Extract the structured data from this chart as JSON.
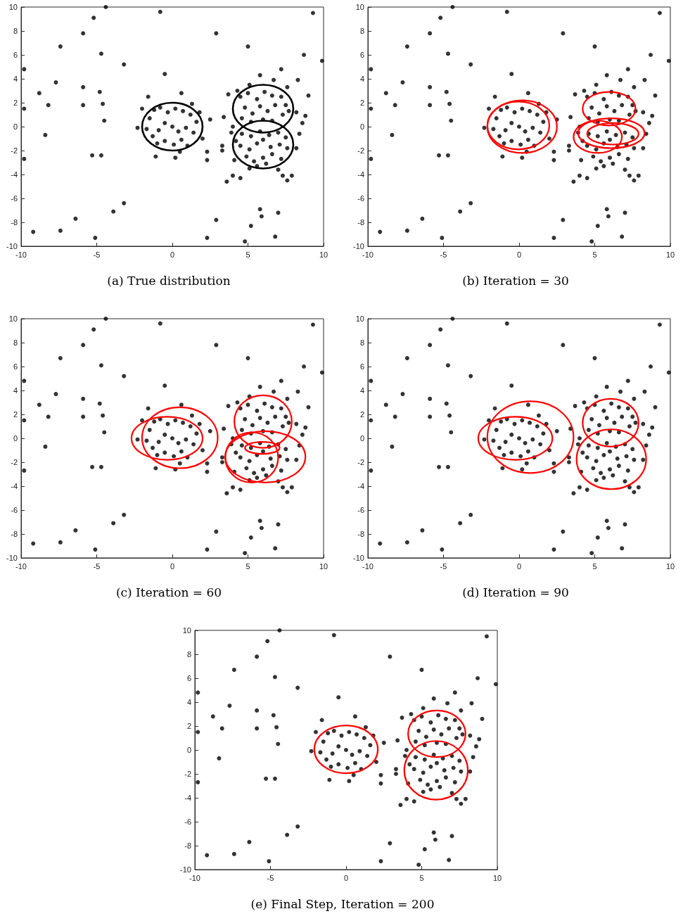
{
  "chart_data": [
    {
      "type": "scatter",
      "title": "(a) True distribution",
      "xlim": [
        -10,
        10
      ],
      "ylim": [
        -10,
        10
      ],
      "xticks": [
        -10,
        -5,
        0,
        5,
        10
      ],
      "yticks": [
        -10,
        -8,
        -6,
        -4,
        -2,
        0,
        2,
        4,
        6,
        8,
        10
      ],
      "grid": false,
      "x": [
        -9.8,
        -9.8,
        -9.8,
        -8.8,
        -8.2,
        -8.4,
        -7.7,
        -7.4,
        -9.2,
        -7.4,
        -6.4,
        -5.9,
        -5.9,
        -5.9,
        -5.2,
        -5.3,
        -4.8,
        -4.7,
        -4.6,
        -4.5,
        -4.7,
        -4.4,
        -3.2,
        -3.2,
        -3.9,
        -5.1,
        -0.8,
        -0.5,
        0.6,
        2.3,
        2.9,
        2.9,
        2.5,
        2.3,
        2.3,
        5.0,
        5.8,
        7.2,
        8.7,
        9.9,
        9.3,
        9.0,
        8.3,
        5.8,
        5.9,
        7.0,
        5.2,
        6.8,
        4.8,
        3.6,
        4.0,
        4.5,
        7.6,
        7.9,
        7.3,
        3.7,
        3.4,
        3.3,
        3.3,
        8.6,
        8.8,
        8.4,
        -1.5,
        -1.2,
        -0.8,
        -0.3,
        0.2,
        0.7,
        1.2,
        1.6,
        -1.7,
        -1.3,
        -0.9,
        -0.5,
        0,
        0.4,
        0.9,
        1.4,
        -1.0,
        -0.5,
        0.1,
        0.6,
        1.0,
        -2.3,
        -1.6,
        -1.1,
        0.2,
        1.3,
        -2.0,
        1.8,
        2.0,
        0.5,
        4.5,
        5.0,
        5.6,
        6.1,
        6.6,
        7.2,
        7.5,
        4.8,
        5.3,
        5.8,
        6.3,
        6.8,
        7.3,
        4.6,
        5.2,
        6.0,
        6.6,
        7.7,
        4.3,
        7.6,
        6.7,
        5.1,
        8.2,
        4.0,
        3.9,
        4.6,
        5.2,
        5.8,
        6.4,
        7.0,
        7.5,
        4.5,
        5.1,
        5.6,
        6.0,
        6.5,
        7.1,
        7.6,
        4.9,
        5.4,
        6.0,
        6.6,
        7.2,
        5.6,
        6.2,
        4.2,
        8.2,
        7.0,
        5.1,
        4.1
      ],
      "series": [
        {
          "marker": "circle",
          "color": "#000000",
          "values": [
            4.8,
            1.5,
            -2.7,
            2.8,
            1.8,
            -0.7,
            3.7,
            6.7,
            -8.8,
            -8.7,
            -7.7,
            7.8,
            3.3,
            1.8,
            9.1,
            -2.4,
            2.9,
            6.1,
            1.9,
            0.5,
            -2.4,
            10,
            5.2,
            -6.4,
            -7.1,
            -9.3,
            9.6,
            4.4,
            2.8,
            -9.3,
            7.8,
            -7.8,
            0.6,
            -2.1,
            -2.8,
            6.7,
            4.3,
            4.8,
            6.0,
            5.5,
            9.5,
            2.6,
            3.9,
            -6.9,
            -7.5,
            -7.2,
            -8.3,
            -9.2,
            -9.6,
            -4.6,
            -4.1,
            -4.3,
            -4.5,
            -4.1,
            -4.1,
            2.7,
            0.8,
            -1.6,
            -2.0,
            0.3,
            0.9,
            -0.6,
            0.7,
            1.4,
            1.6,
            1.2,
            1.5,
            1.3,
            1.0,
            0.4,
            -0.2,
            -0.8,
            -0.3,
            0.3,
            0,
            -0.4,
            -0.1,
            -0.5,
            -1.4,
            -1.2,
            -1.5,
            -1.1,
            -1.6,
            -0.1,
            2.5,
            -2.5,
            -2.6,
            1.9,
            1.5,
            1.2,
            -1.0,
            -2.1,
            2.5,
            2.8,
            2.3,
            2.9,
            2.6,
            2.5,
            1.8,
            1.6,
            1.1,
            1.7,
            1.3,
            1.8,
            1.0,
            0.7,
            0.4,
            0.6,
            0.5,
            1.3,
            3.0,
            3.3,
            3.9,
            3.5,
            1.2,
            0.0,
            -0.5,
            -0.6,
            -0.8,
            -0.4,
            -0.7,
            -0.5,
            -0.9,
            -1.6,
            -1.9,
            -1.4,
            -1.1,
            -1.7,
            -1.5,
            -1.8,
            -2.5,
            -2.9,
            -2.6,
            -2.3,
            -2.7,
            -3.3,
            -3.1,
            -1.2,
            -1.8,
            -3.6,
            -3.5,
            -2.8
          ]
        }
      ]
    },
    {
      "type": "scatter",
      "title": "(b) Iteration = 30",
      "xlim": [
        -10,
        10
      ],
      "ylim": [
        -10,
        10
      ],
      "xticks": [
        -10,
        -5,
        0,
        5,
        10
      ],
      "yticks": [
        -10,
        -8,
        -6,
        -4,
        -2,
        0,
        2,
        4,
        6,
        8,
        10
      ],
      "grid": false,
      "x": [
        -9.8,
        -9.8,
        -9.8,
        -8.8,
        -8.2,
        -8.4,
        -7.7,
        -7.4,
        -9.2,
        -7.4,
        -6.4,
        -5.9,
        -5.9,
        -5.9,
        -5.2,
        -5.3,
        -4.8,
        -4.7,
        -4.6,
        -4.5,
        -4.7,
        -4.4,
        -3.2,
        -3.2,
        -3.9,
        -5.1,
        -0.8,
        -0.5,
        0.6,
        2.3,
        2.9,
        2.9,
        2.5,
        2.3,
        2.3,
        5.0,
        5.8,
        7.2,
        8.7,
        9.9,
        9.3,
        9.0,
        8.3,
        5.8,
        5.9,
        7.0,
        5.2,
        6.8,
        4.8,
        3.6,
        4.0,
        4.5,
        7.6,
        7.9,
        7.3,
        3.7,
        3.4,
        3.3,
        3.3,
        8.6,
        8.8,
        8.4,
        -1.5,
        -1.2,
        -0.8,
        -0.3,
        0.2,
        0.7,
        1.2,
        1.6,
        -1.7,
        -1.3,
        -0.9,
        -0.5,
        0,
        0.4,
        0.9,
        1.4,
        -1.0,
        -0.5,
        0.1,
        0.6,
        1.0,
        -2.3,
        -1.6,
        -1.1,
        0.2,
        1.3,
        -2.0,
        1.8,
        2.0,
        0.5,
        4.5,
        5.0,
        5.6,
        6.1,
        6.6,
        7.2,
        7.5,
        4.8,
        5.3,
        5.8,
        6.3,
        6.8,
        7.3,
        4.6,
        5.2,
        6.0,
        6.6,
        7.7,
        4.3,
        7.6,
        6.7,
        5.1,
        8.2,
        4.0,
        3.9,
        4.6,
        5.2,
        5.8,
        6.4,
        7.0,
        7.5,
        4.5,
        5.1,
        5.6,
        6.0,
        6.5,
        7.1,
        7.6,
        4.9,
        5.4,
        6.0,
        6.6,
        7.2,
        5.6,
        6.2,
        4.2,
        8.2,
        7.0,
        5.1,
        4.1
      ],
      "series": [
        {
          "marker": "circle",
          "color": "#000000",
          "values": [
            4.8,
            1.5,
            -2.7,
            2.8,
            1.8,
            -0.7,
            3.7,
            6.7,
            -8.8,
            -8.7,
            -7.7,
            7.8,
            3.3,
            1.8,
            9.1,
            -2.4,
            2.9,
            6.1,
            1.9,
            0.5,
            -2.4,
            10,
            5.2,
            -6.4,
            -7.1,
            -9.3,
            9.6,
            4.4,
            2.8,
            -9.3,
            7.8,
            -7.8,
            0.6,
            -2.1,
            -2.8,
            6.7,
            4.3,
            4.8,
            6.0,
            5.5,
            9.5,
            2.6,
            3.9,
            -6.9,
            -7.5,
            -7.2,
            -8.3,
            -9.2,
            -9.6,
            -4.6,
            -4.1,
            -4.3,
            -4.5,
            -4.1,
            -4.1,
            2.7,
            0.8,
            -1.6,
            -2.0,
            0.3,
            0.9,
            -0.6,
            0.7,
            1.4,
            1.6,
            1.2,
            1.5,
            1.3,
            1.0,
            0.4,
            -0.2,
            -0.8,
            -0.3,
            0.3,
            0,
            -0.4,
            -0.1,
            -0.5,
            -1.4,
            -1.2,
            -1.5,
            -1.1,
            -1.6,
            -0.1,
            2.5,
            -2.5,
            -2.6,
            1.9,
            1.5,
            1.2,
            -1.0,
            -2.1,
            2.5,
            2.8,
            2.3,
            2.9,
            2.6,
            2.5,
            1.8,
            1.6,
            1.1,
            1.7,
            1.3,
            1.8,
            1.0,
            0.7,
            0.4,
            0.6,
            0.5,
            1.3,
            3.0,
            3.3,
            3.9,
            3.5,
            1.2,
            0.0,
            -0.5,
            -0.6,
            -0.8,
            -0.4,
            -0.7,
            -0.5,
            -0.9,
            -1.6,
            -1.9,
            -1.4,
            -1.1,
            -1.7,
            -1.5,
            -1.8,
            -2.5,
            -2.9,
            -2.6,
            -2.3,
            -2.7,
            -3.3,
            -3.1,
            -1.2,
            -1.8,
            -3.6,
            -3.5,
            -2.8
          ]
        }
      ]
    },
    {
      "type": "scatter",
      "title": "(c) Iteration = 60",
      "xlim": [
        -10,
        10
      ],
      "ylim": [
        -10,
        10
      ],
      "xticks": [
        -10,
        -5,
        0,
        5,
        10
      ],
      "yticks": [
        -10,
        -8,
        -6,
        -4,
        -2,
        0,
        2,
        4,
        6,
        8,
        10
      ],
      "grid": false,
      "x": [
        -9.8,
        -9.8,
        -9.8,
        -8.8,
        -8.2,
        -8.4,
        -7.7,
        -7.4,
        -9.2,
        -7.4,
        -6.4,
        -5.9,
        -5.9,
        -5.9,
        -5.2,
        -5.3,
        -4.8,
        -4.7,
        -4.6,
        -4.5,
        -4.7,
        -4.4,
        -3.2,
        -3.2,
        -3.9,
        -5.1,
        -0.8,
        -0.5,
        0.6,
        2.3,
        2.9,
        2.9,
        2.5,
        2.3,
        2.3,
        5.0,
        5.8,
        7.2,
        8.7,
        9.9,
        9.3,
        9.0,
        8.3,
        5.8,
        5.9,
        7.0,
        5.2,
        6.8,
        4.8,
        3.6,
        4.0,
        4.5,
        7.6,
        7.9,
        7.3,
        3.7,
        3.4,
        3.3,
        3.3,
        8.6,
        8.8,
        8.4,
        -1.5,
        -1.2,
        -0.8,
        -0.3,
        0.2,
        0.7,
        1.2,
        1.6,
        -1.7,
        -1.3,
        -0.9,
        -0.5,
        0,
        0.4,
        0.9,
        1.4,
        -1.0,
        -0.5,
        0.1,
        0.6,
        1.0,
        -2.3,
        -1.6,
        -1.1,
        0.2,
        1.3,
        -2.0,
        1.8,
        2.0,
        0.5,
        4.5,
        5.0,
        5.6,
        6.1,
        6.6,
        7.2,
        7.5,
        4.8,
        5.3,
        5.8,
        6.3,
        6.8,
        7.3,
        4.6,
        5.2,
        6.0,
        6.6,
        7.7,
        4.3,
        7.6,
        6.7,
        5.1,
        8.2,
        4.0,
        3.9,
        4.6,
        5.2,
        5.8,
        6.4,
        7.0,
        7.5,
        4.5,
        5.1,
        5.6,
        6.0,
        6.5,
        7.1,
        7.6,
        4.9,
        5.4,
        6.0,
        6.6,
        7.2,
        5.6,
        6.2,
        4.2,
        8.2,
        7.0,
        5.1,
        4.1
      ],
      "series": [
        {
          "marker": "circle",
          "color": "#000000",
          "values": [
            4.8,
            1.5,
            -2.7,
            2.8,
            1.8,
            -0.7,
            3.7,
            6.7,
            -8.8,
            -8.7,
            -7.7,
            7.8,
            3.3,
            1.8,
            9.1,
            -2.4,
            2.9,
            6.1,
            1.9,
            0.5,
            -2.4,
            10,
            5.2,
            -6.4,
            -7.1,
            -9.3,
            9.6,
            4.4,
            2.8,
            -9.3,
            7.8,
            -7.8,
            0.6,
            -2.1,
            -2.8,
            6.7,
            4.3,
            4.8,
            6.0,
            5.5,
            9.5,
            2.6,
            3.9,
            -6.9,
            -7.5,
            -7.2,
            -8.3,
            -9.2,
            -9.6,
            -4.6,
            -4.1,
            -4.3,
            -4.5,
            -4.1,
            -4.1,
            2.7,
            0.8,
            -1.6,
            -2.0,
            0.3,
            0.9,
            -0.6,
            0.7,
            1.4,
            1.6,
            1.2,
            1.5,
            1.3,
            1.0,
            0.4,
            -0.2,
            -0.8,
            -0.3,
            0.3,
            0,
            -0.4,
            -0.1,
            -0.5,
            -1.4,
            -1.2,
            -1.5,
            -1.1,
            -1.6,
            -0.1,
            2.5,
            -2.5,
            -2.6,
            1.9,
            1.5,
            1.2,
            -1.0,
            -2.1,
            2.5,
            2.8,
            2.3,
            2.9,
            2.6,
            2.5,
            1.8,
            1.6,
            1.1,
            1.7,
            1.3,
            1.8,
            1.0,
            0.7,
            0.4,
            0.6,
            0.5,
            1.3,
            3.0,
            3.3,
            3.9,
            3.5,
            1.2,
            0.0,
            -0.5,
            -0.6,
            -0.8,
            -0.4,
            -0.7,
            -0.5,
            -0.9,
            -1.6,
            -1.9,
            -1.4,
            -1.1,
            -1.7,
            -1.5,
            -1.8,
            -2.5,
            -2.9,
            -2.6,
            -2.3,
            -2.7,
            -3.3,
            -3.1,
            -1.2,
            -1.8,
            -3.6,
            -3.5,
            -2.8
          ]
        }
      ]
    },
    {
      "type": "scatter",
      "title": "(d) Iteration = 90",
      "xlim": [
        -10,
        10
      ],
      "ylim": [
        -10,
        10
      ],
      "xticks": [
        -10,
        -5,
        0,
        5,
        10
      ],
      "yticks": [
        -10,
        -8,
        -6,
        -4,
        -2,
        0,
        2,
        4,
        6,
        8,
        10
      ],
      "grid": false,
      "x": [
        -9.8,
        -9.8,
        -9.8,
        -8.8,
        -8.2,
        -8.4,
        -7.7,
        -7.4,
        -9.2,
        -7.4,
        -6.4,
        -5.9,
        -5.9,
        -5.9,
        -5.2,
        -5.3,
        -4.8,
        -4.7,
        -4.6,
        -4.5,
        -4.7,
        -4.4,
        -3.2,
        -3.2,
        -3.9,
        -5.1,
        -0.8,
        -0.5,
        0.6,
        2.3,
        2.9,
        2.9,
        2.5,
        2.3,
        2.3,
        5.0,
        5.8,
        7.2,
        8.7,
        9.9,
        9.3,
        9.0,
        8.3,
        5.8,
        5.9,
        7.0,
        5.2,
        6.8,
        4.8,
        3.6,
        4.0,
        4.5,
        7.6,
        7.9,
        7.3,
        3.7,
        3.4,
        3.3,
        3.3,
        8.6,
        8.8,
        8.4,
        -1.5,
        -1.2,
        -0.8,
        -0.3,
        0.2,
        0.7,
        1.2,
        1.6,
        -1.7,
        -1.3,
        -0.9,
        -0.5,
        0,
        0.4,
        0.9,
        1.4,
        -1.0,
        -0.5,
        0.1,
        0.6,
        1.0,
        -2.3,
        -1.6,
        -1.1,
        0.2,
        1.3,
        -2.0,
        1.8,
        2.0,
        0.5,
        4.5,
        5.0,
        5.6,
        6.1,
        6.6,
        7.2,
        7.5,
        4.8,
        5.3,
        5.8,
        6.3,
        6.8,
        7.3,
        4.6,
        5.2,
        6.0,
        6.6,
        7.7,
        4.3,
        7.6,
        6.7,
        5.1,
        8.2,
        4.0,
        3.9,
        4.6,
        5.2,
        5.8,
        6.4,
        7.0,
        7.5,
        4.5,
        5.1,
        5.6,
        6.0,
        6.5,
        7.1,
        7.6,
        4.9,
        5.4,
        6.0,
        6.6,
        7.2,
        5.6,
        6.2,
        4.2,
        8.2,
        7.0,
        5.1,
        4.1
      ],
      "series": [
        {
          "marker": "circle",
          "color": "#000000",
          "values": [
            4.8,
            1.5,
            -2.7,
            2.8,
            1.8,
            -0.7,
            3.7,
            6.7,
            -8.8,
            -8.7,
            -7.7,
            7.8,
            3.3,
            1.8,
            9.1,
            -2.4,
            2.9,
            6.1,
            1.9,
            0.5,
            -2.4,
            10,
            5.2,
            -6.4,
            -7.1,
            -9.3,
            9.6,
            4.4,
            2.8,
            -9.3,
            7.8,
            -7.8,
            0.6,
            -2.1,
            -2.8,
            6.7,
            4.3,
            4.8,
            6.0,
            5.5,
            9.5,
            2.6,
            3.9,
            -6.9,
            -7.5,
            -7.2,
            -8.3,
            -9.2,
            -9.6,
            -4.6,
            -4.1,
            -4.3,
            -4.5,
            -4.1,
            -4.1,
            2.7,
            0.8,
            -1.6,
            -2.0,
            0.3,
            0.9,
            -0.6,
            0.7,
            1.4,
            1.6,
            1.2,
            1.5,
            1.3,
            1.0,
            0.4,
            -0.2,
            -0.8,
            -0.3,
            0.3,
            0,
            -0.4,
            -0.1,
            -0.5,
            -1.4,
            -1.2,
            -1.5,
            -1.1,
            -1.6,
            -0.1,
            2.5,
            -2.5,
            -2.6,
            1.9,
            1.5,
            1.2,
            -1.0,
            -2.1,
            2.5,
            2.8,
            2.3,
            2.9,
            2.6,
            2.5,
            1.8,
            1.6,
            1.1,
            1.7,
            1.3,
            1.8,
            1.0,
            0.7,
            0.4,
            0.6,
            0.5,
            1.3,
            3.0,
            3.3,
            3.9,
            3.5,
            1.2,
            0.0,
            -0.5,
            -0.6,
            -0.8,
            -0.4,
            -0.7,
            -0.5,
            -0.9,
            -1.6,
            -1.9,
            -1.4,
            -1.1,
            -1.7,
            -1.5,
            -1.8,
            -2.5,
            -2.9,
            -2.6,
            -2.3,
            -2.7,
            -3.3,
            -3.1,
            -1.2,
            -1.8,
            -3.6,
            -3.5,
            -2.8
          ]
        }
      ]
    },
    {
      "type": "scatter",
      "title": "(e) Final Step, Iteration = 200",
      "xlim": [
        -10,
        10
      ],
      "ylim": [
        -10,
        10
      ],
      "xticks": [
        -10,
        -5,
        0,
        5,
        10
      ],
      "yticks": [
        -10,
        -8,
        -6,
        -4,
        -2,
        0,
        2,
        4,
        6,
        8,
        10
      ],
      "grid": false,
      "x": [
        -9.8,
        -9.8,
        -9.8,
        -8.8,
        -8.2,
        -8.4,
        -7.7,
        -7.4,
        -9.2,
        -7.4,
        -6.4,
        -5.9,
        -5.9,
        -5.9,
        -5.2,
        -5.3,
        -4.8,
        -4.7,
        -4.6,
        -4.5,
        -4.7,
        -4.4,
        -3.2,
        -3.2,
        -3.9,
        -5.1,
        -0.8,
        -0.5,
        0.6,
        2.3,
        2.9,
        2.9,
        2.5,
        2.3,
        2.3,
        5.0,
        5.8,
        7.2,
        8.7,
        9.9,
        9.3,
        9.0,
        8.3,
        5.8,
        5.9,
        7.0,
        5.2,
        6.8,
        4.8,
        3.6,
        4.0,
        4.5,
        7.6,
        7.9,
        7.3,
        3.7,
        3.4,
        3.3,
        3.3,
        8.6,
        8.8,
        8.4,
        -1.5,
        -1.2,
        -0.8,
        -0.3,
        0.2,
        0.7,
        1.2,
        1.6,
        -1.7,
        -1.3,
        -0.9,
        -0.5,
        0,
        0.4,
        0.9,
        1.4,
        -1.0,
        -0.5,
        0.1,
        0.6,
        1.0,
        -2.3,
        -1.6,
        -1.1,
        0.2,
        1.3,
        -2.0,
        1.8,
        2.0,
        0.5,
        4.5,
        5.0,
        5.6,
        6.1,
        6.6,
        7.2,
        7.5,
        4.8,
        5.3,
        5.8,
        6.3,
        6.8,
        7.3,
        4.6,
        5.2,
        6.0,
        6.6,
        7.7,
        4.3,
        7.6,
        6.7,
        5.1,
        8.2,
        4.0,
        3.9,
        4.6,
        5.2,
        5.8,
        6.4,
        7.0,
        7.5,
        4.5,
        5.1,
        5.6,
        6.0,
        6.5,
        7.1,
        7.6,
        4.9,
        5.4,
        6.0,
        6.6,
        7.2,
        5.6,
        6.2,
        4.2,
        8.2,
        7.0,
        5.1,
        4.1
      ],
      "series": [
        {
          "marker": "circle",
          "color": "#000000",
          "values": [
            4.8,
            1.5,
            -2.7,
            2.8,
            1.8,
            -0.7,
            3.7,
            6.7,
            -8.8,
            -8.7,
            -7.7,
            7.8,
            3.3,
            1.8,
            9.1,
            -2.4,
            2.9,
            6.1,
            1.9,
            0.5,
            -2.4,
            10,
            5.2,
            -6.4,
            -7.1,
            -9.3,
            9.6,
            4.4,
            2.8,
            -9.3,
            7.8,
            -7.8,
            0.6,
            -2.1,
            -2.8,
            6.7,
            4.3,
            4.8,
            6.0,
            5.5,
            9.5,
            2.6,
            3.9,
            -6.9,
            -7.5,
            -7.2,
            -8.3,
            -9.2,
            -9.6,
            -4.6,
            -4.1,
            -4.3,
            -4.5,
            -4.1,
            -4.1,
            2.7,
            0.8,
            -1.6,
            -2.0,
            0.3,
            0.9,
            -0.6,
            0.7,
            1.4,
            1.6,
            1.2,
            1.5,
            1.3,
            1.0,
            0.4,
            -0.2,
            -0.8,
            -0.3,
            0.3,
            0,
            -0.4,
            -0.1,
            -0.5,
            -1.4,
            -1.2,
            -1.5,
            -1.1,
            -1.6,
            -0.1,
            2.5,
            -2.5,
            -2.6,
            1.9,
            1.5,
            1.2,
            -1.0,
            -2.1,
            2.5,
            2.8,
            2.3,
            2.9,
            2.6,
            2.5,
            1.8,
            1.6,
            1.1,
            1.7,
            1.3,
            1.8,
            1.0,
            0.7,
            0.4,
            0.6,
            0.5,
            1.3,
            3.0,
            3.3,
            3.9,
            3.5,
            1.2,
            0.0,
            -0.5,
            -0.6,
            -0.8,
            -0.4,
            -0.7,
            -0.5,
            -0.9,
            -1.6,
            -1.9,
            -1.4,
            -1.1,
            -1.7,
            -1.5,
            -1.8,
            -2.5,
            -2.9,
            -2.6,
            -2.3,
            -2.7,
            -3.3,
            -3.1,
            -1.2,
            -1.8,
            -3.6,
            -3.5,
            -2.8
          ]
        }
      ]
    }
  ]
}
